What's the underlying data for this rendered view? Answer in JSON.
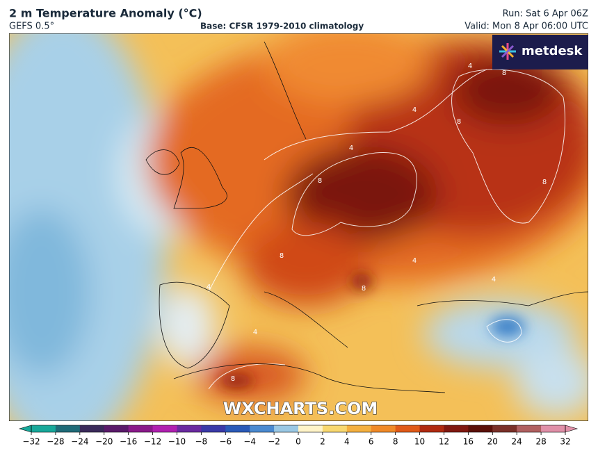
{
  "header": {
    "title": "2 m Temperature Anomaly (°C)",
    "model": "GEFS 0.5°",
    "base": "Base: CFSR 1979-2010 climatology",
    "run": "Run: Sat 6 Apr 06Z",
    "valid": "Valid: Mon 8 Apr 06:00 UTC"
  },
  "logo": "metdesk",
  "watermark": "WXCHARTS.COM",
  "contour_labels": [
    "4",
    "8",
    "4",
    "8",
    "4",
    "8",
    "8",
    "8",
    "4",
    "8",
    "4",
    "4",
    "8",
    "4"
  ],
  "colorbar": {
    "ticks": [
      {
        "value": -32,
        "label": "−32"
      },
      {
        "value": -28,
        "label": "−28"
      },
      {
        "value": -24,
        "label": "−24"
      },
      {
        "value": -20,
        "label": "−20"
      },
      {
        "value": -16,
        "label": "−16"
      },
      {
        "value": -12,
        "label": "−12"
      },
      {
        "value": -10,
        "label": "−10"
      },
      {
        "value": -8,
        "label": "−8"
      },
      {
        "value": -6,
        "label": "−6"
      },
      {
        "value": -4,
        "label": "−4"
      },
      {
        "value": -2,
        "label": "−2"
      },
      0,
      2,
      4,
      6,
      8,
      10,
      12,
      16,
      20,
      24,
      28,
      32
    ],
    "colors": [
      "#17a89a",
      "#1f6b78",
      "#3a2a5a",
      "#5a1a6a",
      "#8a1a8a",
      "#b020b0",
      "#6a2aa0",
      "#3a3aa8",
      "#2a5ab8",
      "#4a8ad0",
      "#9ac8e4",
      "#fff4c8",
      "#f8d870",
      "#f4b040",
      "#f08a28",
      "#e05a18",
      "#b02a10",
      "#801810",
      "#5a1008",
      "#7a3028",
      "#b06060",
      "#e090a8"
    ]
  }
}
